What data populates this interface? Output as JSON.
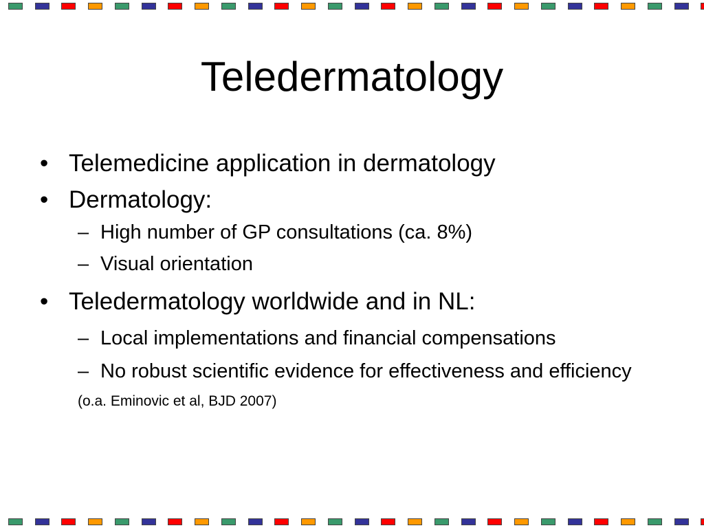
{
  "slide": {
    "title": "Teledermatology",
    "bullets": [
      {
        "text": "Telemedicine application in dermatology",
        "sub": []
      },
      {
        "text": "Dermatology:",
        "sub": [
          "High number of GP consultations (ca. 8%)",
          "Visual orientation"
        ]
      },
      {
        "text": "Teledermatology worldwide and in NL:",
        "sub": [
          "Local implementations and financial compensations",
          "No robust scientific evidence for effectiveness and efficiency"
        ]
      }
    ],
    "citation": "(o.a. Eminovic et al, BJD 2007)",
    "bullet_mark": "•",
    "sub_mark": "–"
  },
  "border": {
    "colors": [
      "#3a9a6c",
      "#333399",
      "#ff0000",
      "#ff9900"
    ]
  }
}
